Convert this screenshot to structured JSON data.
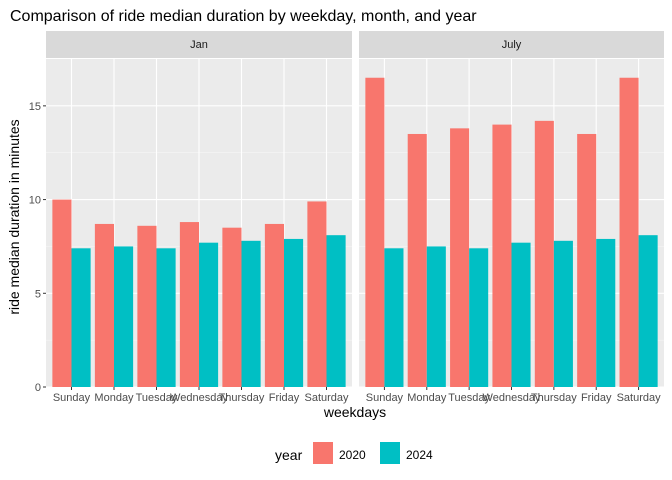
{
  "chart_data": {
    "type": "bar",
    "title": "Comparison of ride median duration by weekday, month, and year",
    "xlabel": "weekdays",
    "ylabel": "ride median duration in minutes",
    "ylim": [
      0,
      17.5
    ],
    "yticks": [
      0,
      5,
      10,
      15
    ],
    "grid": true,
    "legend_placement": "bottom",
    "legend_title": "year",
    "categories": [
      "Sunday",
      "Monday",
      "Tuesday",
      "Wednesday",
      "Thursday",
      "Friday",
      "Saturday"
    ],
    "series_names": [
      "2020",
      "2024"
    ],
    "colors": {
      "2020": "#F8766D",
      "2024": "#00BFC4"
    },
    "panels": [
      {
        "label": "Jan",
        "series": [
          {
            "name": "2020",
            "values": [
              10.0,
              8.7,
              8.6,
              8.8,
              8.5,
              8.7,
              9.9
            ]
          },
          {
            "name": "2024",
            "values": [
              7.4,
              7.5,
              7.4,
              7.7,
              7.8,
              7.9,
              8.1
            ]
          }
        ]
      },
      {
        "label": "July",
        "series": [
          {
            "name": "2020",
            "values": [
              16.5,
              13.5,
              13.8,
              14.0,
              14.2,
              13.5,
              16.5
            ]
          },
          {
            "name": "2024",
            "values": [
              7.4,
              7.5,
              7.4,
              7.7,
              7.8,
              7.9,
              8.1
            ]
          }
        ]
      }
    ]
  }
}
